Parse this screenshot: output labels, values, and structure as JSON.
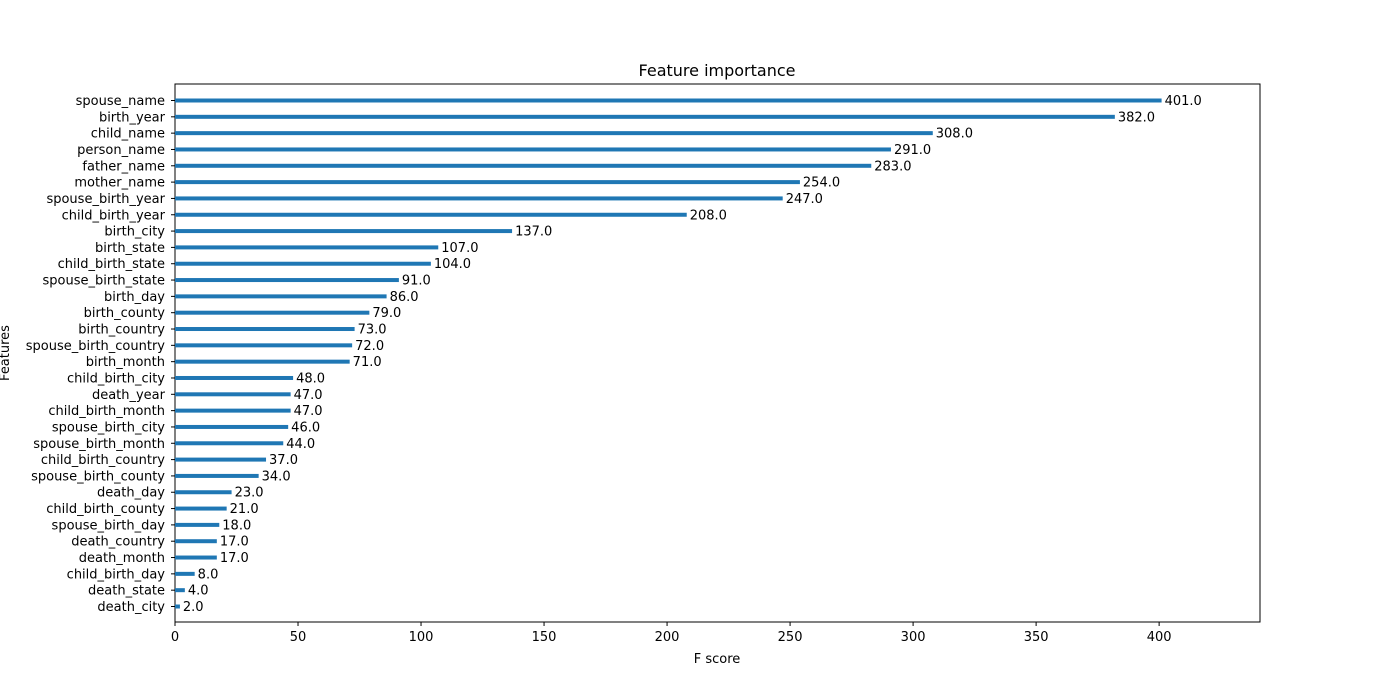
{
  "chart_data": {
    "type": "bar",
    "orientation": "horizontal",
    "title": "Feature importance",
    "xlabel": "F score",
    "ylabel": "Features",
    "xlim": [
      0,
      441
    ],
    "xticks": [
      0,
      50,
      100,
      150,
      200,
      250,
      300,
      350,
      400
    ],
    "grid": false,
    "bar_color": "#1f77b4",
    "categories": [
      "spouse_name",
      "birth_year",
      "child_name",
      "person_name",
      "father_name",
      "mother_name",
      "spouse_birth_year",
      "child_birth_year",
      "birth_city",
      "birth_state",
      "child_birth_state",
      "spouse_birth_state",
      "birth_day",
      "birth_county",
      "birth_country",
      "spouse_birth_country",
      "birth_month",
      "child_birth_city",
      "death_year",
      "child_birth_month",
      "spouse_birth_city",
      "spouse_birth_month",
      "child_birth_country",
      "spouse_birth_county",
      "death_day",
      "child_birth_county",
      "spouse_birth_day",
      "death_country",
      "death_month",
      "child_birth_day",
      "death_state",
      "death_city"
    ],
    "values": [
      401.0,
      382.0,
      308.0,
      291.0,
      283.0,
      254.0,
      247.0,
      208.0,
      137.0,
      107.0,
      104.0,
      91.0,
      86.0,
      79.0,
      73.0,
      72.0,
      71.0,
      48.0,
      47.0,
      47.0,
      46.0,
      44.0,
      37.0,
      34.0,
      23.0,
      21.0,
      18.0,
      17.0,
      17.0,
      8.0,
      4.0,
      2.0
    ],
    "value_labels": [
      "401.0",
      "382.0",
      "308.0",
      "291.0",
      "283.0",
      "254.0",
      "247.0",
      "208.0",
      "137.0",
      "107.0",
      "104.0",
      "91.0",
      "86.0",
      "79.0",
      "73.0",
      "72.0",
      "71.0",
      "48.0",
      "47.0",
      "47.0",
      "46.0",
      "44.0",
      "37.0",
      "34.0",
      "23.0",
      "21.0",
      "18.0",
      "17.0",
      "17.0",
      "8.0",
      "4.0",
      "2.0"
    ]
  }
}
